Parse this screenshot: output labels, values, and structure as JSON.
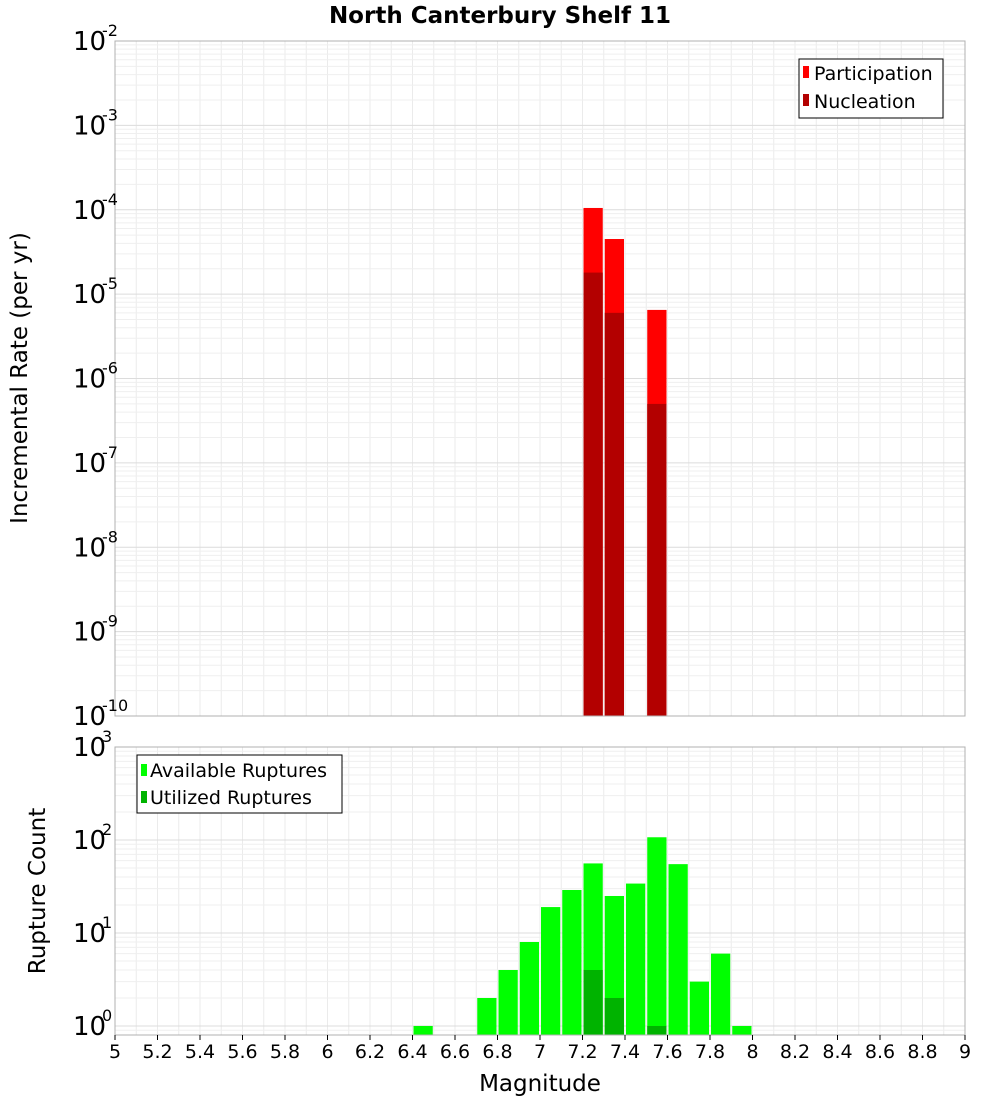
{
  "chart_data": [
    {
      "type": "bar",
      "title": "North Canterbury Shelf 11",
      "xlabel": "Magnitude",
      "ylabel": "Incremental Rate (per yr)",
      "yscale": "log",
      "ylim": [
        1e-10,
        0.01
      ],
      "xlim": [
        5,
        9
      ],
      "ytick_base": "10",
      "ytick_exponents": [
        "-10",
        "-9",
        "-8",
        "-7",
        "-6",
        "-5",
        "-4",
        "-3",
        "-2"
      ],
      "legend": {
        "placement": "top-right",
        "entries": [
          "Participation",
          "Nucleation"
        ]
      },
      "colors": {
        "Participation": "#ff0000",
        "Nucleation": "#b30000"
      },
      "series": [
        {
          "name": "Participation",
          "x": [
            7.25,
            7.35,
            7.55
          ],
          "values": [
            0.000105,
            4.5e-05,
            6.5e-06
          ]
        },
        {
          "name": "Nucleation",
          "x": [
            7.25,
            7.35,
            7.55
          ],
          "values": [
            1.8e-05,
            6e-06,
            5e-07
          ]
        }
      ]
    },
    {
      "type": "bar",
      "xlabel": "Magnitude",
      "ylabel": "Rupture Count",
      "yscale": "log",
      "ylim": [
        0.8,
        1000
      ],
      "xlim": [
        5,
        9
      ],
      "ytick_base": "10",
      "ytick_exponents": [
        "0",
        "1",
        "2",
        "3"
      ],
      "xticks": [
        "5",
        "5.2",
        "5.4",
        "5.6",
        "5.8",
        "6",
        "6.2",
        "6.4",
        "6.6",
        "6.8",
        "7",
        "7.2",
        "7.4",
        "7.6",
        "7.8",
        "8",
        "8.2",
        "8.4",
        "8.6",
        "8.8",
        "9"
      ],
      "legend": {
        "placement": "top-left",
        "entries": [
          "Available Ruptures",
          "Utilized Ruptures"
        ]
      },
      "colors": {
        "Available Ruptures": "#00ff00",
        "Utilized Ruptures": "#00b300"
      },
      "series": [
        {
          "name": "Available Ruptures",
          "x": [
            6.45,
            6.75,
            6.85,
            6.95,
            7.05,
            7.15,
            7.25,
            7.35,
            7.45,
            7.55,
            7.65,
            7.75,
            7.85,
            7.95
          ],
          "values": [
            1,
            2,
            4,
            8,
            19,
            29,
            56,
            25,
            34,
            107,
            55,
            3,
            6,
            1
          ]
        },
        {
          "name": "Utilized Ruptures",
          "x": [
            7.25,
            7.35,
            7.55
          ],
          "values": [
            4,
            2,
            1
          ]
        }
      ]
    }
  ]
}
